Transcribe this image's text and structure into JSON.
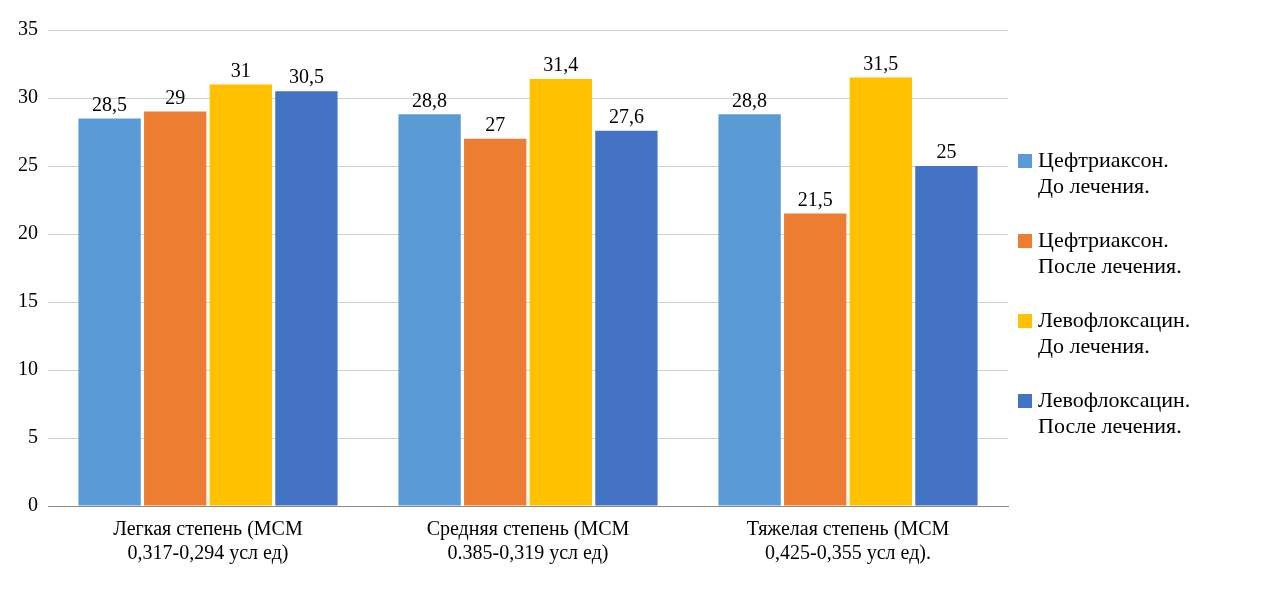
{
  "chart_data": {
    "type": "bar",
    "categories": [
      "Легкая степень (МСМ 0,317-0,294 усл ед)",
      "Средняя степень (МСМ 0.385-0,319 усл ед)",
      "Тяжелая степень (МСМ 0,425-0,355 усл ед)."
    ],
    "series": [
      {
        "name": "Цефтриаксон. До лечения.",
        "color": "#5b9bd5",
        "values": [
          28.5,
          28.8,
          28.8
        ],
        "value_labels": [
          "28,5",
          "28,8",
          "28,8"
        ]
      },
      {
        "name": "Цефтриаксон. После лечения.",
        "color": "#ed7d31",
        "values": [
          29,
          27,
          21.5
        ],
        "value_labels": [
          "29",
          "27",
          "21,5"
        ]
      },
      {
        "name": "Левофлоксацин. До лечения.",
        "color": "#ffc000",
        "values": [
          31,
          31.4,
          31.5
        ],
        "value_labels": [
          "31",
          "31,4",
          "31,5"
        ]
      },
      {
        "name": "Левофлоксацин. После лечения.",
        "color": "#4472c4",
        "values": [
          30.5,
          27.6,
          25
        ],
        "value_labels": [
          "30,5",
          "27,6",
          "25"
        ]
      }
    ],
    "ylim": [
      0,
      35
    ],
    "yticks": [
      0,
      5,
      10,
      15,
      20,
      25,
      30,
      35
    ],
    "grid": "y",
    "legend": "right"
  }
}
